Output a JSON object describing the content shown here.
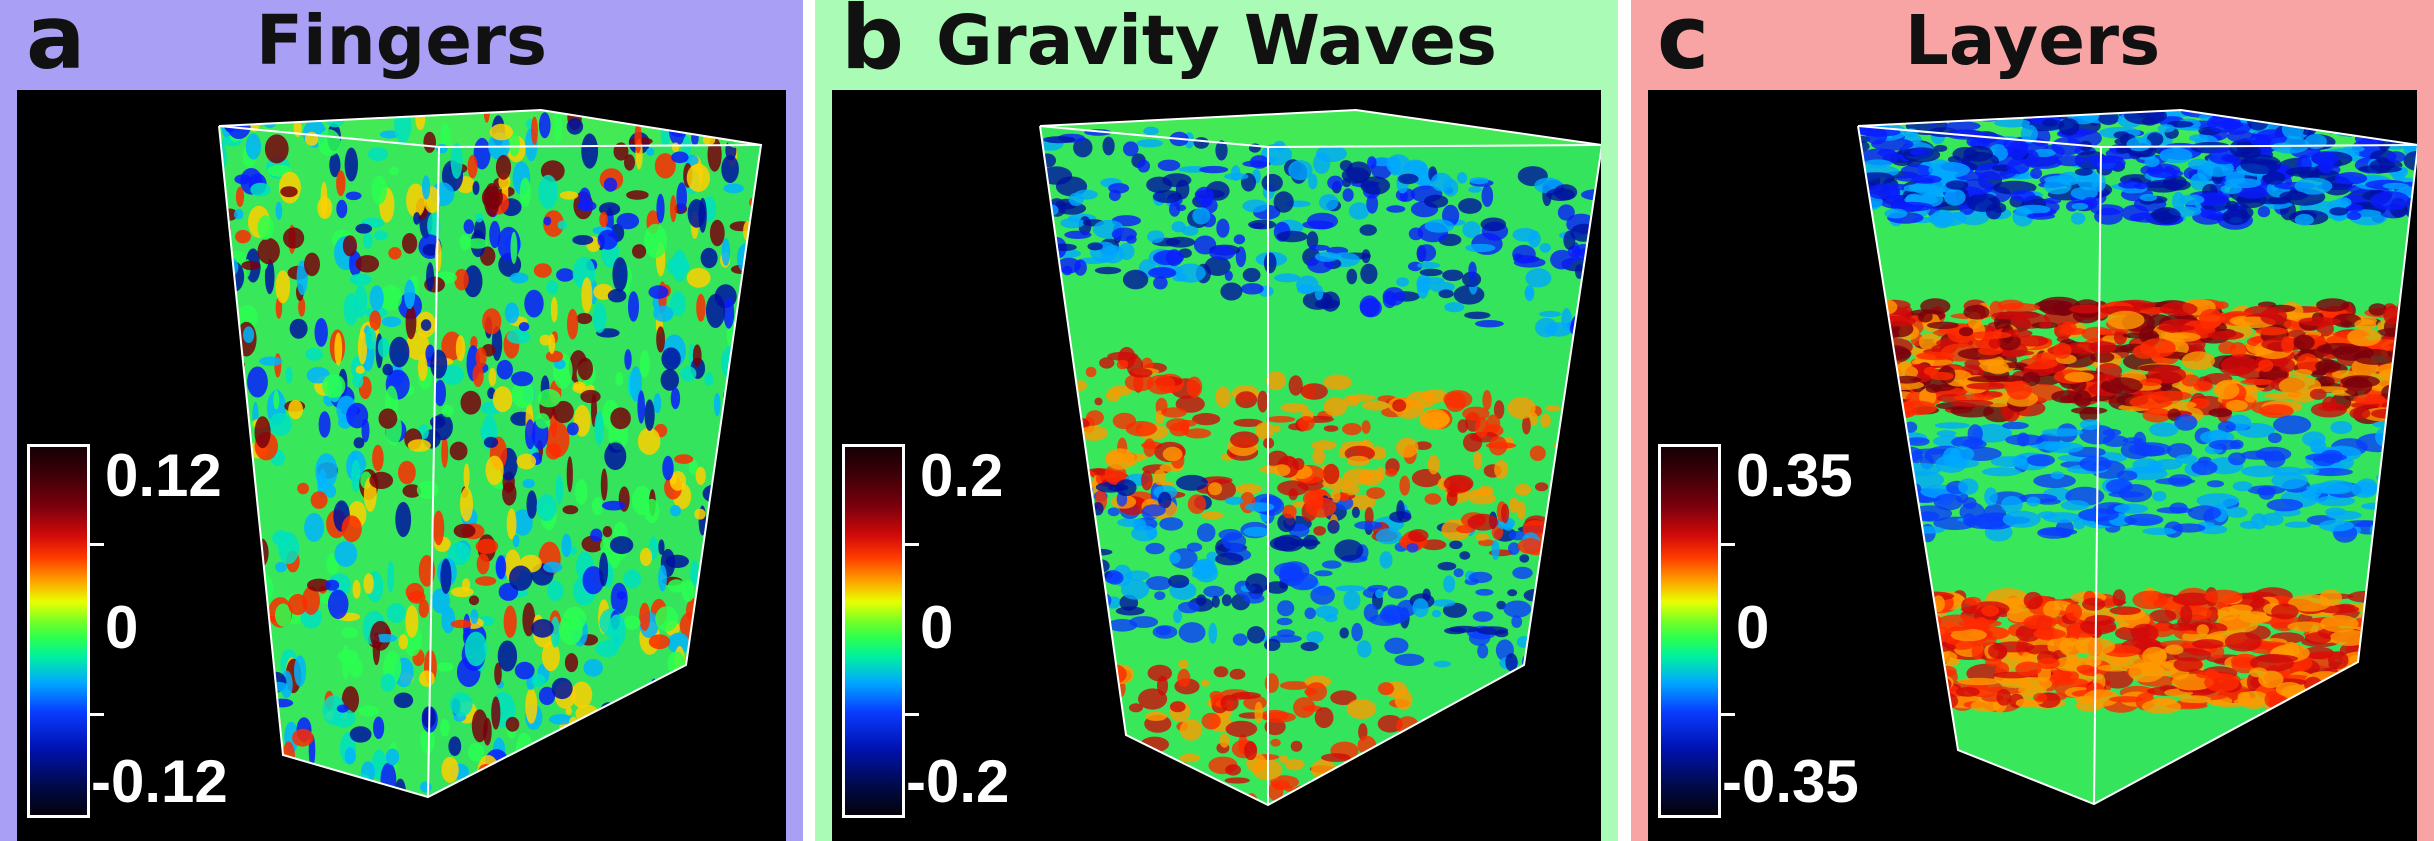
{
  "panels": [
    {
      "letter": "a",
      "title": "Fingers",
      "background": "#a99ff5",
      "colorbar": {
        "max": "0.12",
        "mid": "0",
        "min": "-0.12"
      }
    },
    {
      "letter": "b",
      "title": "Gravity Waves",
      "background": "#aafbb6",
      "colorbar": {
        "max": "0.2",
        "mid": "0",
        "min": "-0.2"
      }
    },
    {
      "letter": "c",
      "title": "Layers",
      "background": "#f8a4a4",
      "colorbar": {
        "max": "0.35",
        "mid": "0",
        "min": "-0.35"
      }
    }
  ],
  "colormap": {
    "stops": [
      "#140004",
      "#7a000c",
      "#ff3a00",
      "#ff9a00",
      "#e8ff00",
      "#2aff50",
      "#00a8ff",
      "#0a3cff",
      "#000a4a"
    ]
  },
  "colors": {
    "plot_background": "#000000",
    "title_text": "#111111",
    "colorbar_text": "#ffffff"
  }
}
